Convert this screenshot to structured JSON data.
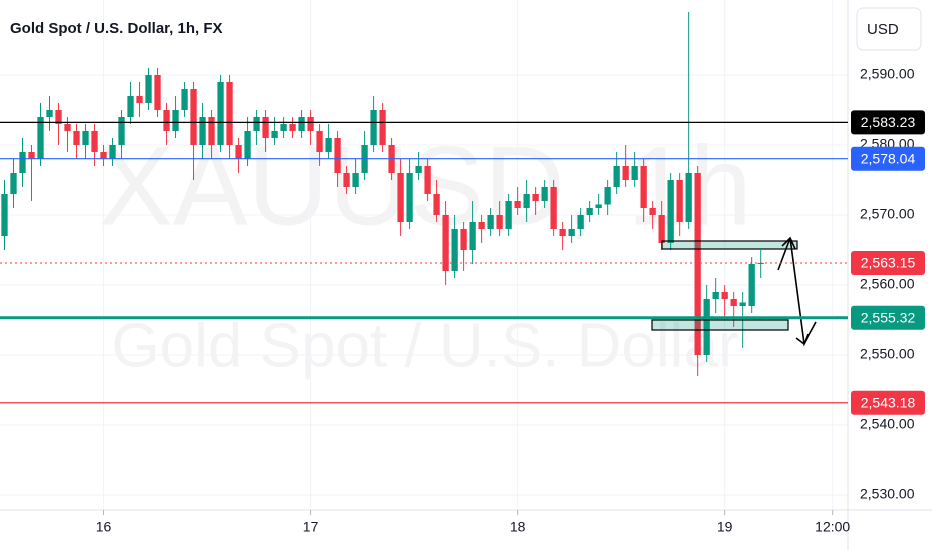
{
  "chart_data": {
    "type": "candlestick",
    "title": "Gold Spot / U.S. Dollar, 1h, FX",
    "currency": "USD",
    "watermark": "XAUUSD, 1h",
    "watermark_subtitle": "Gold Spot / U.S. Dollar",
    "up_color": "#089981",
    "down_color": "#f23645",
    "open": [
      2567,
      2573,
      2576,
      2579,
      2578,
      2584,
      2585,
      2583,
      2582,
      2580,
      2582,
      2579,
      2578,
      2580,
      2584,
      2587,
      2586,
      2590,
      2585,
      2582,
      2585,
      2588,
      2580,
      2584,
      2580,
      2589,
      2580,
      2578,
      2582,
      2584,
      2581,
      2582,
      2583,
      2582,
      2584,
      2582,
      2579,
      2581,
      2576,
      2574,
      2576,
      2580,
      2585,
      2580,
      2576,
      2569,
      2576,
      2577,
      2573,
      2570,
      2562,
      2568,
      2565,
      2569,
      2568,
      2570,
      2568,
      2572,
      2571,
      2573,
      2572,
      2574,
      2568,
      2567,
      2568,
      2570,
      2571,
      2571.5,
      2574,
      2577,
      2575,
      2577,
      2571,
      2570,
      2566,
      2575,
      2569,
      2576,
      2550,
      2558,
      2559,
      2558,
      2557,
      2557,
      2563
    ],
    "high": [
      2575,
      2578,
      2581,
      2580,
      2586,
      2587,
      2586,
      2584,
      2583,
      2583,
      2583,
      2580,
      2581,
      2585,
      2589,
      2589,
      2591,
      2591,
      2586,
      2587,
      2589,
      2589,
      2586,
      2585,
      2590,
      2590,
      2581,
      2584,
      2585,
      2585,
      2584,
      2584,
      2584,
      2585,
      2585,
      2583,
      2583,
      2582,
      2577,
      2578,
      2582,
      2587,
      2586,
      2581,
      2578,
      2578,
      2579,
      2578,
      2575,
      2572,
      2570,
      2569,
      2572,
      2570,
      2571,
      2572,
      2573,
      2574,
      2575,
      2574,
      2575,
      2575,
      2569,
      2570,
      2571,
      2572,
      2573,
      2575,
      2579,
      2580,
      2579,
      2578,
      2572,
      2572,
      2576,
      2576,
      2599,
      2577,
      2560,
      2561,
      2560,
      2559,
      2559,
      2564,
      2565
    ],
    "low": [
      2565,
      2571,
      2574,
      2572,
      2577,
      2582,
      2580,
      2579,
      2578,
      2578,
      2577,
      2577,
      2577,
      2578,
      2583,
      2584,
      2585,
      2584,
      2580,
      2581,
      2584,
      2575,
      2578,
      2578,
      2579,
      2578,
      2576,
      2577,
      2580,
      2579,
      2580,
      2581,
      2581,
      2581,
      2580,
      2577,
      2578,
      2574,
      2573,
      2573,
      2575,
      2579,
      2579,
      2575,
      2567,
      2568,
      2575,
      2572,
      2569,
      2560,
      2561,
      2562,
      2563,
      2566,
      2567,
      2567,
      2567,
      2570,
      2569,
      2570,
      2571,
      2567,
      2565,
      2566,
      2567,
      2569,
      2570,
      2570,
      2573,
      2574,
      2574,
      2569,
      2568,
      2565,
      2565,
      2567,
      2568,
      2547,
      2549,
      2556,
      2555,
      2554,
      2551,
      2556,
      2561
    ],
    "close": [
      2573,
      2576,
      2579,
      2578,
      2584,
      2585,
      2583,
      2582,
      2580,
      2582,
      2579,
      2578,
      2580,
      2584,
      2587,
      2586,
      2590,
      2585,
      2582,
      2585,
      2588,
      2580,
      2584,
      2580,
      2589,
      2580,
      2578,
      2582,
      2584,
      2581,
      2582,
      2583,
      2582,
      2584,
      2582,
      2579,
      2581,
      2576,
      2574,
      2576,
      2580,
      2585,
      2580,
      2576,
      2569,
      2576,
      2577,
      2573,
      2570,
      2562,
      2568,
      2565,
      2569,
      2568,
      2570,
      2568,
      2572,
      2571,
      2573,
      2572,
      2574,
      2568,
      2567,
      2568,
      2570,
      2571,
      2571.5,
      2574,
      2577,
      2575,
      2577,
      2571,
      2570,
      2566,
      2575,
      2569,
      2576,
      2550,
      2558,
      2559,
      2558,
      2557,
      2557.5,
      2563,
      2563.15
    ],
    "xlim": [
      -0.5,
      93.7
    ],
    "xticks": [
      {
        "value": 11,
        "label": "16"
      },
      {
        "value": 34,
        "label": "17"
      },
      {
        "value": 57,
        "label": "18"
      },
      {
        "value": 80,
        "label": "19"
      },
      {
        "value": 92,
        "label": "12:00"
      }
    ],
    "ylim": [
      2527.86,
      2600.71
    ],
    "yticks": [
      {
        "value": 2530,
        "label": "2,530.00"
      },
      {
        "value": 2540,
        "label": "2,540.00"
      },
      {
        "value": 2550,
        "label": "2,550.00"
      },
      {
        "value": 2560,
        "label": "2,560.00"
      },
      {
        "value": 2570,
        "label": "2,570.00"
      },
      {
        "value": 2580,
        "label": "2,580.00"
      },
      {
        "value": 2590,
        "label": "2,590.00"
      }
    ],
    "price_lines": [
      {
        "value": 2583.23,
        "label": "2,583.23",
        "color": "#000000",
        "style": "solid"
      },
      {
        "value": 2578.04,
        "label": "2,578.04",
        "color": "#2962ff",
        "style": "solid"
      },
      {
        "value": 2563.15,
        "label": "2,563.15",
        "color": "#f23645",
        "style": "dotted"
      },
      {
        "value": 2555.32,
        "label": "2,555.32",
        "color": "#089981",
        "style": "thick"
      },
      {
        "value": 2543.18,
        "label": "2,543.18",
        "color": "#f23645",
        "style": "solid"
      }
    ]
  }
}
